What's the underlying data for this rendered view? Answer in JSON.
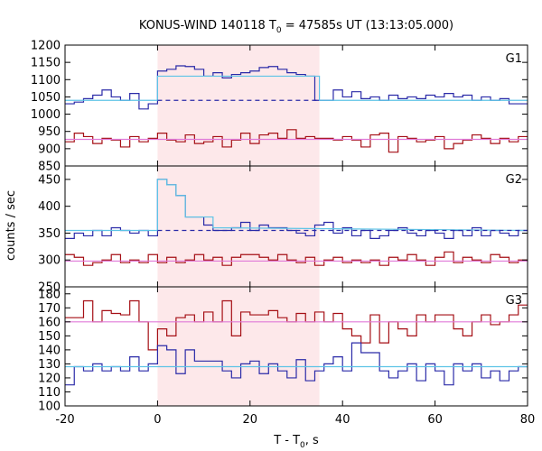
{
  "chart_data": {
    "type": "line",
    "title_main": "KONUS-WIND 140118 T",
    "title_sub": "0",
    "title_rest": " = 47585s UT (13:13:05.000)",
    "xlabel_main": "T - T",
    "xlabel_sub": "0",
    "xlabel_rest": ", s",
    "ylabel": "counts / sec",
    "xlim": [
      -20,
      80
    ],
    "xticks": [
      "-20",
      "0",
      "20",
      "40",
      "60",
      "80"
    ],
    "shaded_interval": [
      0,
      35
    ],
    "colors": {
      "red_series": "#a50f15",
      "blue_series": "#2a2aa8",
      "cyan_fit": "#5ec4e6",
      "pink_fit": "#e07ad8",
      "shade": "#fde8ea"
    },
    "panels": [
      {
        "label": "G1",
        "ylim": [
          850,
          1200
        ],
        "yticks": [
          "1200",
          "1150",
          "1100",
          "1050",
          "1000",
          "950",
          "900",
          "850"
        ],
        "series": [
          {
            "color": "blue",
            "bin_edges": [
              -20,
              -18,
              -16,
              -14,
              -12,
              -10,
              -8,
              -6,
              -4,
              -2,
              0,
              2,
              4,
              6,
              8,
              10,
              12,
              14,
              16,
              18,
              20,
              22,
              24,
              26,
              28,
              30,
              32,
              34,
              36,
              38,
              40,
              42,
              44,
              46,
              48,
              50,
              52,
              54,
              56,
              58,
              60,
              62,
              64,
              66,
              68,
              70,
              72,
              74,
              76,
              78,
              80
            ],
            "values": [
              1030,
              1035,
              1045,
              1055,
              1070,
              1050,
              1040,
              1060,
              1015,
              1030,
              1125,
              1130,
              1140,
              1138,
              1130,
              1110,
              1120,
              1105,
              1115,
              1120,
              1125,
              1135,
              1138,
              1130,
              1120,
              1115,
              1110,
              1040,
              1040,
              1070,
              1050,
              1065,
              1045,
              1050,
              1040,
              1055,
              1045,
              1050,
              1045,
              1055,
              1050,
              1060,
              1050,
              1055,
              1040,
              1050,
              1040,
              1045,
              1030,
              1030
            ]
          },
          {
            "color": "red",
            "bin_edges": [
              -20,
              -18,
              -16,
              -14,
              -12,
              -10,
              -8,
              -6,
              -4,
              -2,
              0,
              2,
              4,
              6,
              8,
              10,
              12,
              14,
              16,
              18,
              20,
              22,
              24,
              26,
              28,
              30,
              32,
              34,
              36,
              38,
              40,
              42,
              44,
              46,
              48,
              50,
              52,
              54,
              56,
              58,
              60,
              62,
              64,
              66,
              68,
              70,
              72,
              74,
              76,
              78,
              80
            ],
            "values": [
              920,
              945,
              935,
              915,
              930,
              925,
              905,
              935,
              920,
              930,
              945,
              925,
              920,
              940,
              915,
              920,
              935,
              905,
              925,
              945,
              915,
              940,
              945,
              930,
              955,
              930,
              935,
              930,
              930,
              925,
              935,
              925,
              905,
              940,
              945,
              890,
              935,
              930,
              920,
              925,
              935,
              900,
              915,
              925,
              940,
              930,
              915,
              930,
              920,
              935
            ]
          },
          {
            "color": "cyan",
            "steps": [
              [
                -20,
                1040
              ],
              [
                0,
                1040
              ],
              [
                0,
                1110
              ],
              [
                35,
                1110
              ],
              [
                35,
                1040
              ],
              [
                80,
                1040
              ]
            ]
          },
          {
            "color": "blue",
            "dashed": [
              0,
              35
            ],
            "level": 1040
          },
          {
            "color": "pink",
            "level": 927
          }
        ]
      },
      {
        "label": "G2",
        "ylim": [
          250,
          475
        ],
        "yticks": [
          "450",
          "400",
          "350",
          "300",
          "250"
        ],
        "series": [
          {
            "color": "blue",
            "bin_edges": [
              -20,
              -18,
              -16,
              -14,
              -12,
              -10,
              -8,
              -6,
              -4,
              -2,
              0,
              2,
              4,
              6,
              8,
              10,
              12,
              14,
              16,
              18,
              20,
              22,
              24,
              26,
              28,
              30,
              32,
              34,
              36,
              38,
              40,
              42,
              44,
              46,
              48,
              50,
              52,
              54,
              56,
              58,
              60,
              62,
              64,
              66,
              68,
              70,
              72,
              74,
              76,
              78,
              80
            ],
            "values": [
              340,
              350,
              345,
              355,
              345,
              360,
              355,
              350,
              355,
              345,
              450,
              440,
              420,
              380,
              380,
              365,
              355,
              355,
              360,
              370,
              355,
              365,
              360,
              360,
              355,
              350,
              345,
              365,
              370,
              350,
              360,
              345,
              355,
              340,
              345,
              355,
              360,
              350,
              345,
              355,
              350,
              340,
              355,
              345,
              360,
              345,
              355,
              350,
              345,
              355
            ]
          },
          {
            "color": "red",
            "bin_edges": [
              -20,
              -18,
              -16,
              -14,
              -12,
              -10,
              -8,
              -6,
              -4,
              -2,
              0,
              2,
              4,
              6,
              8,
              10,
              12,
              14,
              16,
              18,
              20,
              22,
              24,
              26,
              28,
              30,
              32,
              34,
              36,
              38,
              40,
              42,
              44,
              46,
              48,
              50,
              52,
              54,
              56,
              58,
              60,
              62,
              64,
              66,
              68,
              70,
              72,
              74,
              76,
              78,
              80
            ],
            "values": [
              310,
              305,
              290,
              295,
              300,
              310,
              295,
              300,
              295,
              310,
              295,
              305,
              295,
              300,
              310,
              300,
              305,
              290,
              305,
              310,
              310,
              305,
              300,
              310,
              300,
              295,
              305,
              290,
              300,
              305,
              295,
              300,
              295,
              300,
              290,
              305,
              300,
              310,
              300,
              290,
              305,
              315,
              295,
              305,
              300,
              295,
              310,
              305,
              295,
              300
            ]
          },
          {
            "color": "cyan",
            "steps": [
              [
                -20,
                355
              ],
              [
                0,
                355
              ],
              [
                0,
                450
              ],
              [
                2,
                450
              ],
              [
                2,
                440
              ],
              [
                4,
                440
              ],
              [
                4,
                420
              ],
              [
                6,
                420
              ],
              [
                6,
                380
              ],
              [
                12,
                380
              ],
              [
                12,
                360
              ],
              [
                80,
                355
              ]
            ]
          },
          {
            "color": "blue",
            "dashed": [
              0,
              80
            ],
            "level": 355
          },
          {
            "color": "pink",
            "level": 298
          }
        ]
      },
      {
        "label": "G3",
        "ylim": [
          100,
          185
        ],
        "yticks": [
          "180",
          "170",
          "160",
          "150",
          "140",
          "130",
          "120",
          "110",
          "100"
        ],
        "series": [
          {
            "color": "red",
            "bin_edges": [
              -20,
              -18,
              -16,
              -14,
              -12,
              -10,
              -8,
              -6,
              -4,
              -2,
              0,
              2,
              4,
              6,
              8,
              10,
              12,
              14,
              16,
              18,
              20,
              22,
              24,
              26,
              28,
              30,
              32,
              34,
              36,
              38,
              40,
              42,
              44,
              46,
              48,
              50,
              52,
              54,
              56,
              58,
              60,
              62,
              64,
              66,
              68,
              70,
              72,
              74,
              76,
              78,
              80
            ],
            "values": [
              163,
              163,
              175,
              160,
              168,
              166,
              165,
              175,
              160,
              140,
              155,
              150,
              163,
              165,
              160,
              167,
              160,
              175,
              150,
              167,
              165,
              165,
              168,
              163,
              160,
              166,
              160,
              167,
              160,
              166,
              155,
              150,
              145,
              165,
              145,
              160,
              155,
              150,
              165,
              160,
              165,
              165,
              155,
              150,
              160,
              165,
              158,
              160,
              165,
              172
            ]
          },
          {
            "color": "blue",
            "bin_edges": [
              -20,
              -18,
              -16,
              -14,
              -12,
              -10,
              -8,
              -6,
              -4,
              -2,
              0,
              2,
              4,
              6,
              8,
              10,
              12,
              14,
              16,
              18,
              20,
              22,
              24,
              26,
              28,
              30,
              32,
              34,
              36,
              38,
              40,
              42,
              44,
              46,
              48,
              50,
              52,
              54,
              56,
              58,
              60,
              62,
              64,
              66,
              68,
              70,
              72,
              74,
              76,
              78,
              80
            ],
            "values": [
              115,
              128,
              125,
              130,
              125,
              128,
              125,
              135,
              125,
              130,
              143,
              140,
              123,
              140,
              132,
              132,
              132,
              125,
              120,
              130,
              132,
              123,
              130,
              125,
              120,
              133,
              118,
              125,
              130,
              135,
              125,
              145,
              138,
              138,
              125,
              120,
              125,
              130,
              118,
              130,
              125,
              115,
              130,
              125,
              130,
              120,
              125,
              118,
              125,
              128
            ]
          },
          {
            "color": "cyan",
            "level": 128
          },
          {
            "color": "pink",
            "level": 160
          }
        ]
      }
    ]
  }
}
